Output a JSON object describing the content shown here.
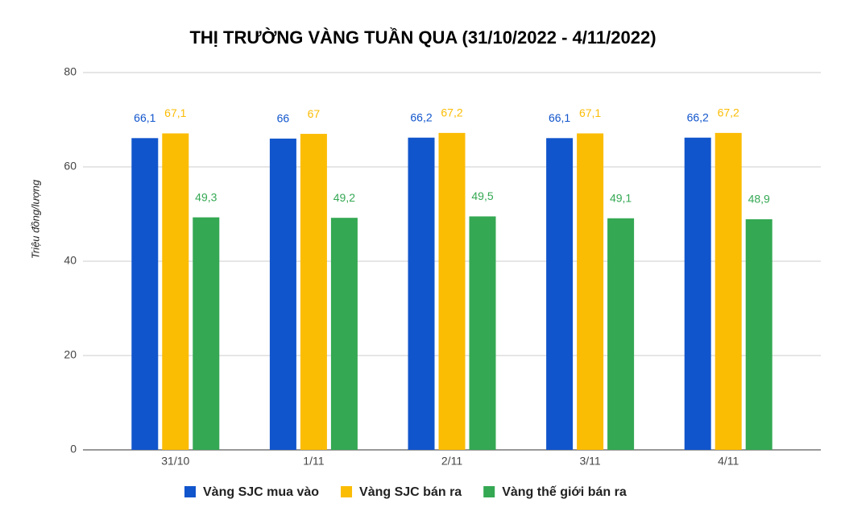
{
  "chart_data": {
    "type": "bar",
    "title": "THỊ TRƯỜNG VÀNG TUẦN QUA (31/10/2022 - 4/11/2022)",
    "y_label": "Triệu đồng/lượng",
    "categories": [
      "31/10",
      "1/11",
      "2/11",
      "3/11",
      "4/11"
    ],
    "series": [
      {
        "name": "Vàng SJC mua vào",
        "color": "#1155cc",
        "values": [
          66.1,
          66,
          66.2,
          66.1,
          66.2
        ],
        "value_labels": [
          "66,1",
          "66",
          "66,2",
          "66,1",
          "66,2"
        ]
      },
      {
        "name": "Vàng SJC bán ra",
        "color": "#fbbc04",
        "values": [
          67.1,
          67,
          67.2,
          67.1,
          67.2
        ],
        "value_labels": [
          "67,1",
          "67",
          "67,2",
          "67,1",
          "67,2"
        ]
      },
      {
        "name": "Vàng thế giới bán ra",
        "color": "#34a853",
        "values": [
          49.3,
          49.2,
          49.5,
          49.1,
          48.9
        ],
        "value_labels": [
          "49,3",
          "49,2",
          "49,5",
          "49,1",
          "48,9"
        ]
      }
    ],
    "ylim": [
      0,
      80
    ],
    "yticks": [
      0,
      20,
      40,
      60,
      80
    ],
    "grid": true,
    "legend": "bottom"
  }
}
